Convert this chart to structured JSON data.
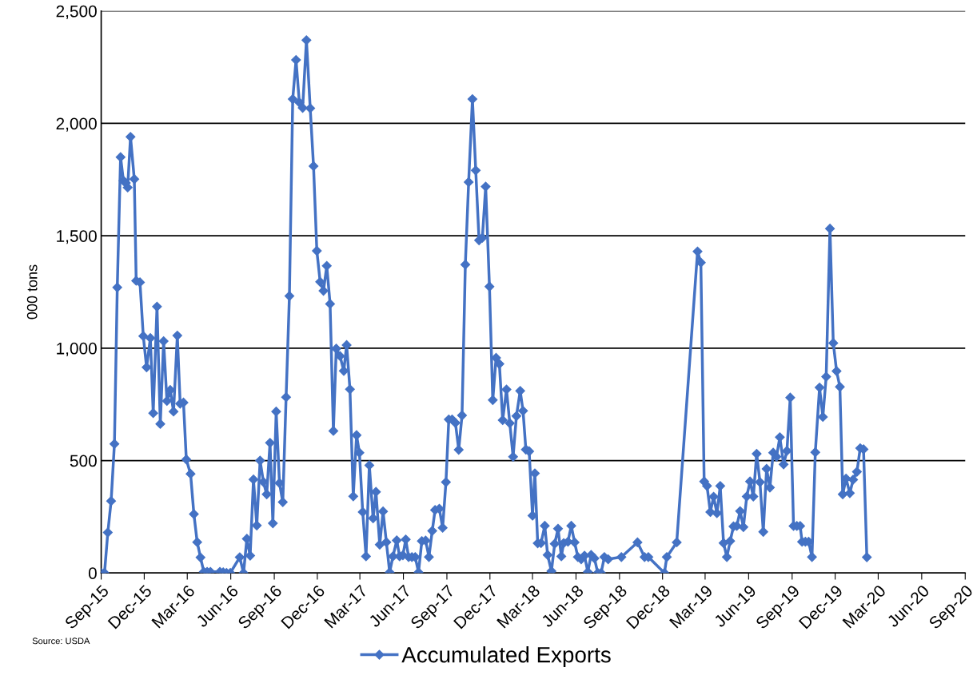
{
  "chart_data": {
    "type": "line",
    "ylabel": "000 tons",
    "annotations": [
      "Source: USDA"
    ],
    "legend": "bottom",
    "grid": "y",
    "marker": "diamond",
    "line_style": "solid",
    "ylim": [
      0,
      2500
    ],
    "yticks": [
      0,
      {
        "value": 500,
        "label": "500"
      },
      {
        "value": 1000,
        "label": "1,000"
      },
      {
        "value": 1500,
        "label": "1,500"
      },
      {
        "value": 2000,
        "label": "2,000"
      },
      {
        "value": 2500,
        "label": "2,500"
      }
    ],
    "xlim": [
      "2015-09-01",
      "2020-09-01"
    ],
    "xticks": [
      {
        "value": "2015-09-01",
        "label": "Sep-15"
      },
      {
        "value": "2015-12-01",
        "label": "Dec-15"
      },
      {
        "value": "2016-03-01",
        "label": "Mar-16"
      },
      {
        "value": "2016-06-01",
        "label": "Jun-16"
      },
      {
        "value": "2016-09-01",
        "label": "Sep-16"
      },
      {
        "value": "2016-12-01",
        "label": "Dec-16"
      },
      {
        "value": "2017-03-01",
        "label": "Mar-17"
      },
      {
        "value": "2017-06-01",
        "label": "Jun-17"
      },
      {
        "value": "2017-09-01",
        "label": "Sep-17"
      },
      {
        "value": "2017-12-01",
        "label": "Dec-17"
      },
      {
        "value": "2018-03-01",
        "label": "Mar-18"
      },
      {
        "value": "2018-06-01",
        "label": "Jun-18"
      },
      {
        "value": "2018-09-01",
        "label": "Sep-18"
      },
      {
        "value": "2018-12-01",
        "label": "Dec-18"
      },
      {
        "value": "2019-03-01",
        "label": "Mar-19"
      },
      {
        "value": "2019-06-01",
        "label": "Jun-19"
      },
      {
        "value": "2019-09-01",
        "label": "Sep-19"
      },
      {
        "value": "2019-12-01",
        "label": "Dec-19"
      },
      {
        "value": "2020-03-01",
        "label": "Mar-20"
      },
      {
        "value": "2020-06-01",
        "label": "Jun-20"
      },
      {
        "value": "2020-09-01",
        "label": "Sep-20"
      }
    ],
    "series": [
      {
        "name": "Accumulated Exports",
        "color": "#4472c4",
        "x": [
          "2015-09-01",
          "2015-09-08",
          "2015-09-15",
          "2015-09-22",
          "2015-09-29",
          "2015-10-05",
          "2015-10-12",
          "2015-10-18",
          "2015-10-23",
          "2015-10-27",
          "2015-11-02",
          "2015-11-10",
          "2015-11-14",
          "2015-11-22",
          "2015-11-29",
          "2015-12-06",
          "2015-12-14",
          "2015-12-20",
          "2015-12-28",
          "2016-01-04",
          "2016-01-11",
          "2016-01-18",
          "2016-01-25",
          "2016-02-01",
          "2016-02-09",
          "2016-02-15",
          "2016-02-22",
          "2016-02-28",
          "2016-03-08",
          "2016-03-15",
          "2016-03-22",
          "2016-03-29",
          "2016-04-05",
          "2016-04-12",
          "2016-04-19",
          "2016-05-09",
          "2016-05-16",
          "2016-05-23",
          "2016-05-31",
          "2016-06-20",
          "2016-06-28",
          "2016-07-05",
          "2016-07-12",
          "2016-07-19",
          "2016-07-26",
          "2016-08-02",
          "2016-08-09",
          "2016-08-16",
          "2016-08-23",
          "2016-08-29",
          "2016-09-05",
          "2016-09-12",
          "2016-09-19",
          "2016-09-26",
          "2016-10-03",
          "2016-10-10",
          "2016-10-17",
          "2016-10-24",
          "2016-10-31",
          "2016-11-08",
          "2016-11-16",
          "2016-11-23",
          "2016-11-30",
          "2016-12-07",
          "2016-12-14",
          "2016-12-21",
          "2016-12-28",
          "2017-01-04",
          "2017-01-10",
          "2017-01-18",
          "2017-01-26",
          "2017-02-01",
          "2017-02-08",
          "2017-02-15",
          "2017-02-22",
          "2017-02-28",
          "2017-03-07",
          "2017-03-14",
          "2017-03-21",
          "2017-03-29",
          "2017-04-04",
          "2017-04-12",
          "2017-04-19",
          "2017-04-26",
          "2017-05-03",
          "2017-05-10",
          "2017-05-18",
          "2017-05-24",
          "2017-05-31",
          "2017-06-06",
          "2017-06-12",
          "2017-06-19",
          "2017-06-26",
          "2017-07-03",
          "2017-07-10",
          "2017-07-18",
          "2017-07-25",
          "2017-08-01",
          "2017-08-07",
          "2017-08-16",
          "2017-08-23",
          "2017-08-30",
          "2017-09-05",
          "2017-09-12",
          "2017-09-19",
          "2017-09-26",
          "2017-10-03",
          "2017-10-10",
          "2017-10-17",
          "2017-10-25",
          "2017-11-01",
          "2017-11-08",
          "2017-11-15",
          "2017-11-22",
          "2017-11-30",
          "2017-12-07",
          "2017-12-14",
          "2017-12-21",
          "2017-12-28",
          "2018-01-05",
          "2018-01-12",
          "2018-01-19",
          "2018-01-26",
          "2018-02-03",
          "2018-02-09",
          "2018-02-15",
          "2018-02-22",
          "2018-03-01",
          "2018-03-06",
          "2018-03-12",
          "2018-03-19",
          "2018-03-27",
          "2018-04-02",
          "2018-04-10",
          "2018-04-17",
          "2018-04-24",
          "2018-05-01",
          "2018-05-06",
          "2018-05-15",
          "2018-05-22",
          "2018-05-29",
          "2018-06-05",
          "2018-06-12",
          "2018-06-19",
          "2018-06-26",
          "2018-07-03",
          "2018-07-10",
          "2018-07-17",
          "2018-07-24",
          "2018-07-31",
          "2018-08-08",
          "2018-09-05",
          "2018-10-09",
          "2018-10-24",
          "2018-11-01",
          "2018-12-05",
          "2018-12-10",
          "2018-12-31",
          "2019-02-13",
          "2019-02-20",
          "2019-02-27",
          "2019-03-05",
          "2019-03-12",
          "2019-03-19",
          "2019-03-26",
          "2019-04-02",
          "2019-04-09",
          "2019-04-16",
          "2019-04-23",
          "2019-04-30",
          "2019-05-07",
          "2019-05-14",
          "2019-05-21",
          "2019-05-28",
          "2019-06-04",
          "2019-06-11",
          "2019-06-18",
          "2019-06-25",
          "2019-07-02",
          "2019-07-09",
          "2019-07-16",
          "2019-07-23",
          "2019-07-30",
          "2019-08-06",
          "2019-08-14",
          "2019-08-21",
          "2019-08-28",
          "2019-09-04",
          "2019-09-11",
          "2019-09-18",
          "2019-09-22",
          "2019-09-29",
          "2019-10-06",
          "2019-10-13",
          "2019-10-20",
          "2019-10-29",
          "2019-11-05",
          "2019-11-12",
          "2019-11-20",
          "2019-11-27",
          "2019-12-04",
          "2019-12-11",
          "2019-12-17",
          "2019-12-24",
          "2020-01-01",
          "2020-01-08",
          "2020-01-16",
          "2020-01-23",
          "2020-01-30",
          "2020-02-06"
        ],
        "values": [
          0,
          0,
          180,
          320,
          574,
          1270,
          1850,
          1745,
          1735,
          1715,
          1940,
          1752,
          1300,
          1293,
          1054,
          915,
          1045,
          711,
          1185,
          663,
          1031,
          765,
          814,
          718,
          1056,
          753,
          758,
          505,
          441,
          262,
          137,
          69,
          5,
          5,
          5,
          5,
          3,
          0,
          0,
          70,
          0,
          152,
          77,
          416,
          211,
          500,
          405,
          350,
          579,
          221,
          718,
          400,
          315,
          782,
          1232,
          2108,
          2282,
          2093,
          2069,
          2370,
          2067,
          1810,
          1433,
          1295,
          1255,
          1366,
          1197,
          632,
          998,
          965,
          899,
          1014,
          817,
          341,
          613,
          535,
          271,
          74,
          479,
          243,
          361,
          126,
          274,
          137,
          3,
          74,
          145,
          74,
          79,
          149,
          71,
          71,
          71,
          3,
          142,
          144,
          71,
          187,
          280,
          286,
          201,
          404,
          683,
          683,
          668,
          548,
          701,
          1372,
          1739,
          2108,
          1791,
          1480,
          1491,
          1719,
          1274,
          769,
          957,
          930,
          680,
          816,
          666,
          517,
          698,
          810,
          721,
          549,
          541,
          255,
          443,
          132,
          133,
          210,
          80,
          8,
          130,
          197,
          74,
          133,
          139,
          210,
          136,
          71,
          61,
          77,
          4,
          80,
          65,
          0,
          0,
          71,
          61,
          71,
          136,
          71,
          71,
          0,
          71,
          136,
          1430,
          1381,
          407,
          387,
          271,
          339,
          266,
          387,
          133,
          71,
          142,
          207,
          209,
          275,
          204,
          340,
          407,
          340,
          530,
          404,
          183,
          463,
          380,
          535,
          517,
          604,
          483,
          543,
          780,
          209,
          209,
          209,
          139,
          139,
          139,
          71,
          537,
          825,
          694,
          873,
          1532,
          1023,
          898,
          828,
          350,
          420,
          355,
          415,
          450,
          555,
          550,
          70
        ]
      }
    ]
  }
}
